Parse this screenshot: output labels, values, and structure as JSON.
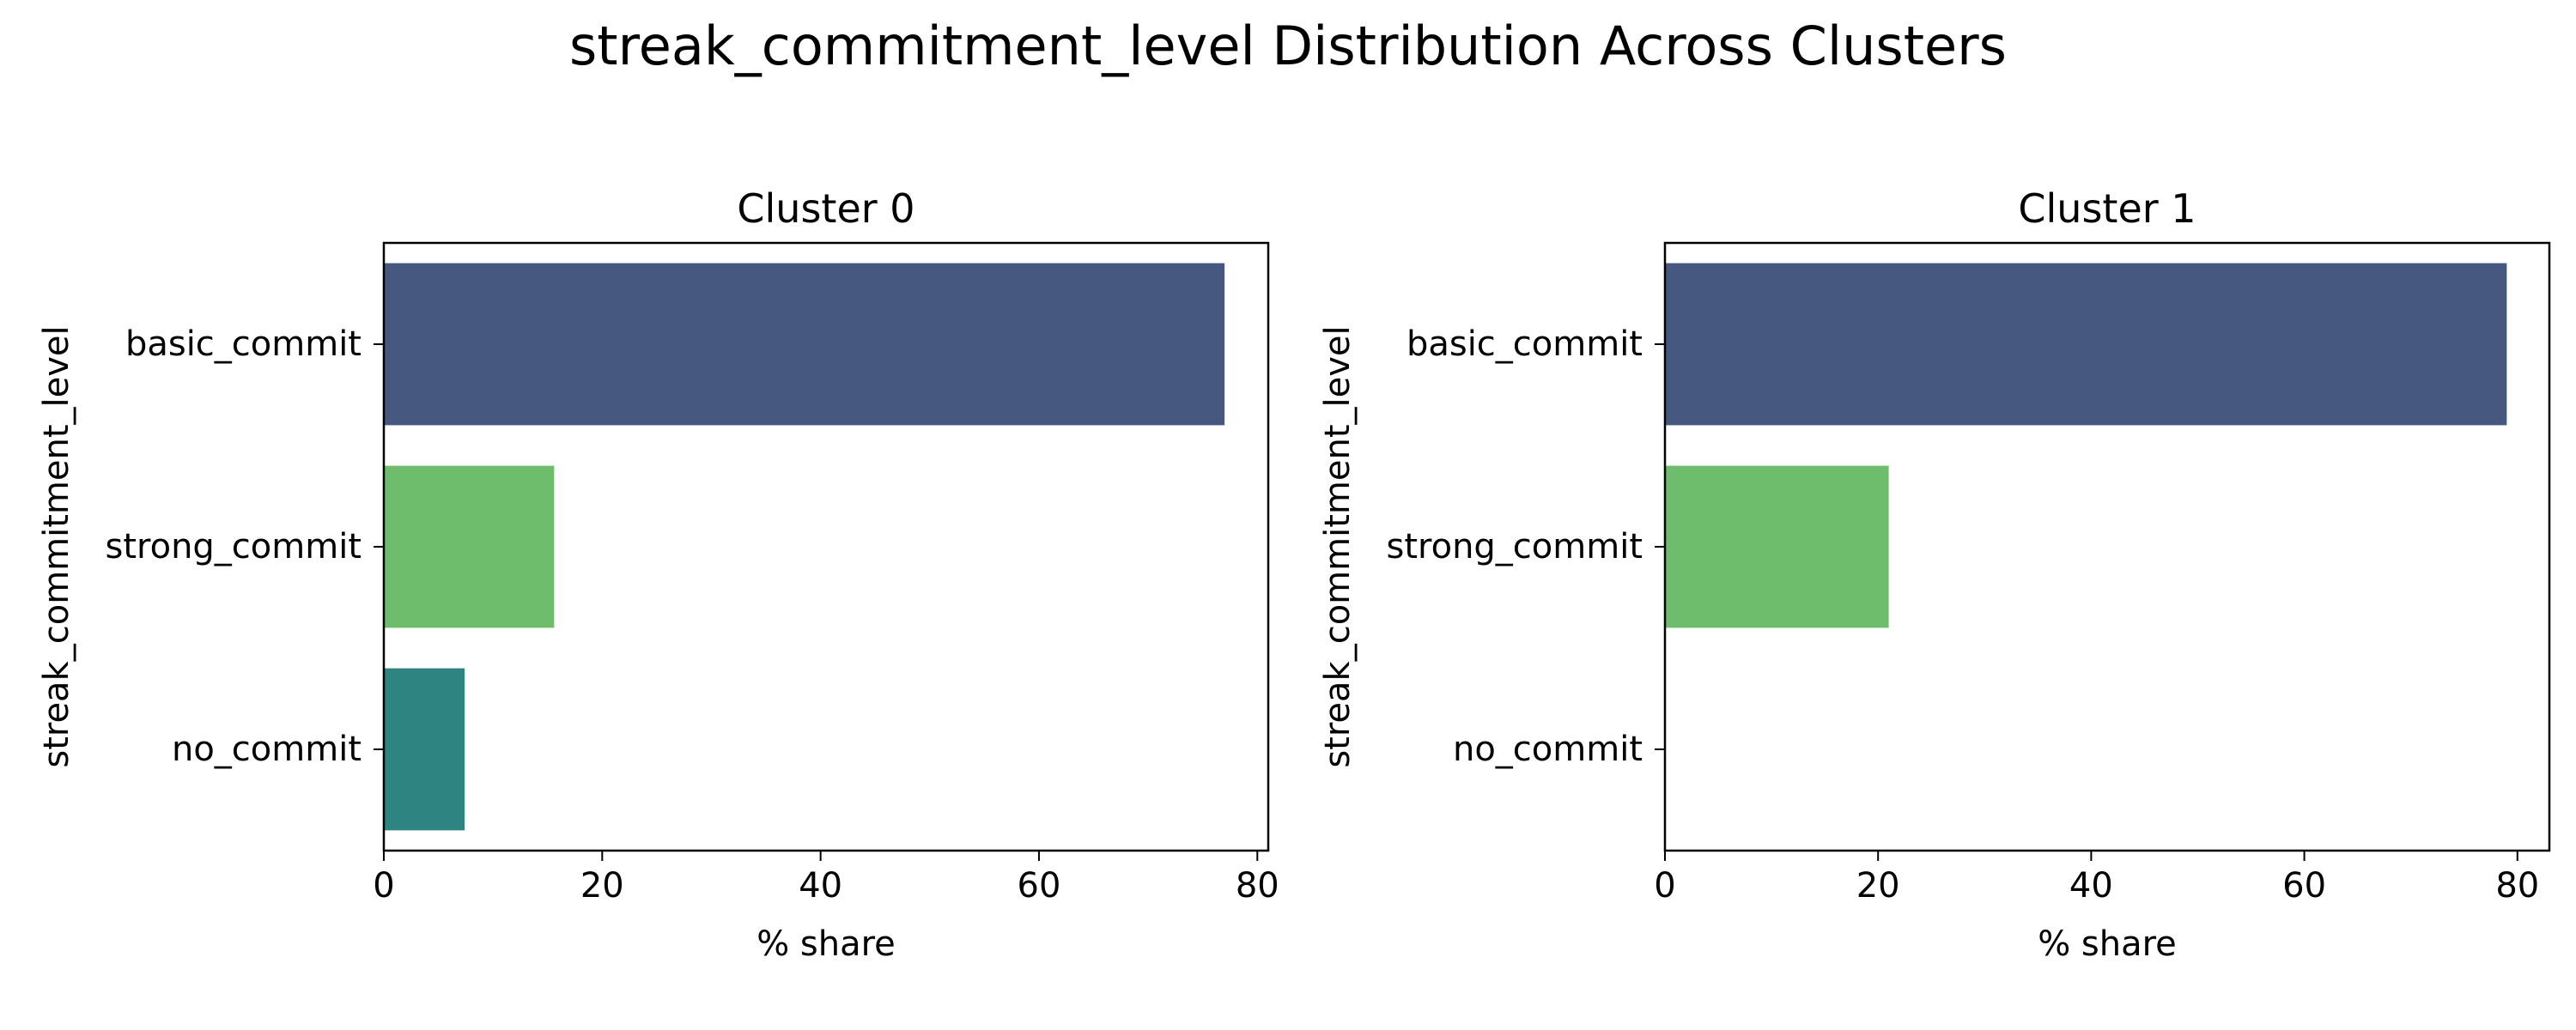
{
  "figure": {
    "title": "streak_commitment_level Distribution Across Clusters"
  },
  "chart_data": [
    {
      "type": "bar",
      "orientation": "horizontal",
      "title": "Cluster 0",
      "xlabel": "% share",
      "ylabel": "streak_commitment_level",
      "categories": [
        "basic_commit",
        "strong_commit",
        "no_commit"
      ],
      "values": [
        77.0,
        15.6,
        7.4
      ],
      "bar_colors": [
        "#46587f",
        "#6dbd6d",
        "#2e8480"
      ],
      "xlim": [
        0,
        81
      ],
      "xticks": [
        0,
        20,
        40,
        60,
        80
      ],
      "grid": false,
      "legend": false
    },
    {
      "type": "bar",
      "orientation": "horizontal",
      "title": "Cluster 1",
      "xlabel": "% share",
      "ylabel": "streak_commitment_level",
      "categories": [
        "basic_commit",
        "strong_commit",
        "no_commit"
      ],
      "values": [
        79.0,
        21.0,
        0
      ],
      "bar_colors": [
        "#46587f",
        "#6dbd6d",
        "#2e8480"
      ],
      "xlim": [
        0,
        83
      ],
      "xticks": [
        0,
        20,
        40,
        60,
        80
      ],
      "grid": false,
      "legend": false
    }
  ]
}
